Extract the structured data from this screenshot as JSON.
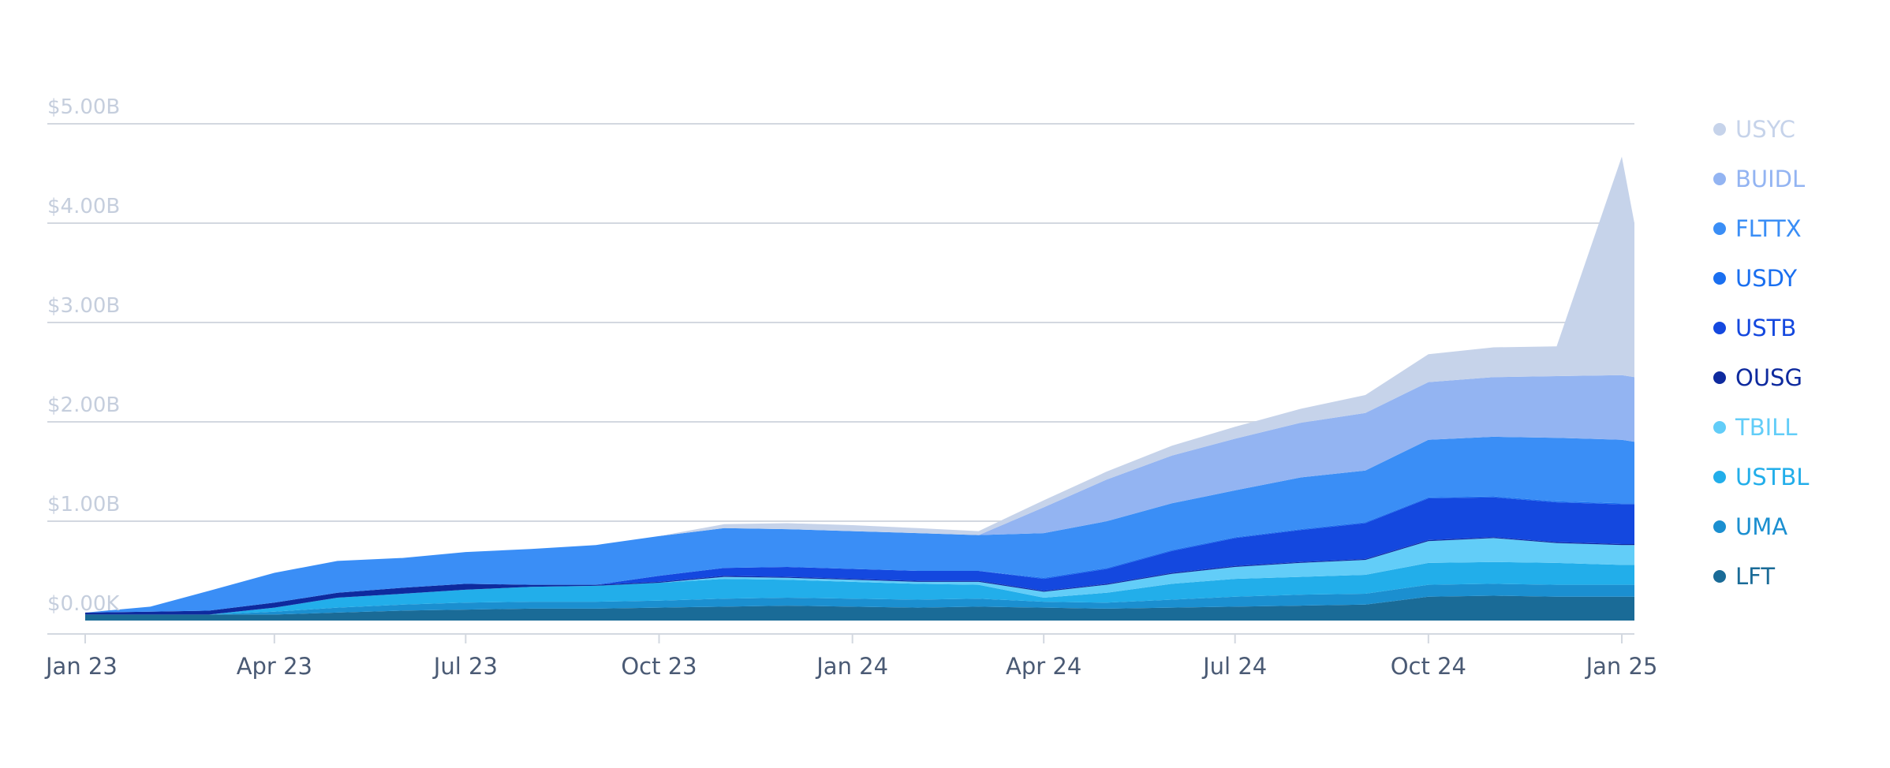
{
  "chart_data": {
    "type": "area",
    "stacked": true,
    "title": "",
    "xlabel": "",
    "ylabel": "",
    "ylim": [
      0,
      5.0
    ],
    "y_ticks": [
      "$0.00K",
      "$1.00B",
      "$2.00B",
      "$3.00B",
      "$4.00B",
      "$5.00B"
    ],
    "y_tick_values": [
      0,
      1,
      2,
      3,
      4,
      5
    ],
    "x_ticks": [
      "Jan 23",
      "Apr 23",
      "Jul 23",
      "Oct 23",
      "Jan 24",
      "Apr 24",
      "Jul 24",
      "Oct 24",
      "Jan 25"
    ],
    "x_tick_values": [
      "2023-01-01",
      "2023-04-01",
      "2023-07-01",
      "2023-10-01",
      "2024-01-01",
      "2024-04-01",
      "2024-07-01",
      "2024-10-01",
      "2025-01-01"
    ],
    "x": [
      "2023-01-01",
      "2023-02-01",
      "2023-03-01",
      "2023-04-01",
      "2023-05-01",
      "2023-06-01",
      "2023-07-01",
      "2023-08-01",
      "2023-09-01",
      "2023-10-01",
      "2023-11-01",
      "2023-12-01",
      "2024-01-01",
      "2024-02-01",
      "2024-03-01",
      "2024-04-01",
      "2024-05-01",
      "2024-06-01",
      "2024-07-01",
      "2024-08-01",
      "2024-09-01",
      "2024-10-01",
      "2024-11-01",
      "2024-12-01",
      "2025-01-01",
      "2025-01-07"
    ],
    "legend_position": "right",
    "grid": true,
    "series": [
      {
        "name": "LFT",
        "color": "#1a6b97",
        "values": [
          0.06,
          0.06,
          0.06,
          0.06,
          0.08,
          0.1,
          0.11,
          0.12,
          0.12,
          0.13,
          0.14,
          0.15,
          0.14,
          0.13,
          0.14,
          0.13,
          0.12,
          0.13,
          0.14,
          0.15,
          0.16,
          0.24,
          0.25,
          0.24,
          0.24,
          0.24
        ]
      },
      {
        "name": "UMA",
        "color": "#1b8fd0",
        "values": [
          0.0,
          0.0,
          0.0,
          0.03,
          0.05,
          0.06,
          0.07,
          0.07,
          0.07,
          0.07,
          0.08,
          0.08,
          0.08,
          0.08,
          0.08,
          0.06,
          0.06,
          0.08,
          0.1,
          0.11,
          0.11,
          0.12,
          0.12,
          0.12,
          0.12,
          0.12
        ]
      },
      {
        "name": "USTBL",
        "color": "#22aeea",
        "values": [
          0.0,
          0.0,
          0.0,
          0.04,
          0.1,
          0.11,
          0.13,
          0.15,
          0.16,
          0.18,
          0.2,
          0.18,
          0.17,
          0.16,
          0.14,
          0.04,
          0.1,
          0.16,
          0.18,
          0.18,
          0.19,
          0.22,
          0.22,
          0.22,
          0.2,
          0.2
        ]
      },
      {
        "name": "TBILL",
        "color": "#62cdf8",
        "values": [
          0.0,
          0.0,
          0.0,
          0.0,
          0.0,
          0.0,
          0.0,
          0.0,
          0.0,
          0.0,
          0.02,
          0.02,
          0.02,
          0.02,
          0.03,
          0.06,
          0.08,
          0.1,
          0.12,
          0.14,
          0.15,
          0.22,
          0.24,
          0.2,
          0.2,
          0.2
        ]
      },
      {
        "name": "OUSG",
        "color": "#0e2a9e",
        "values": [
          0.02,
          0.03,
          0.04,
          0.05,
          0.05,
          0.06,
          0.06,
          0.02,
          0.01,
          0.01,
          0.01,
          0.01,
          0.01,
          0.01,
          0.01,
          0.01,
          0.01,
          0.01,
          0.01,
          0.01,
          0.01,
          0.01,
          0.01,
          0.01,
          0.01,
          0.01
        ]
      },
      {
        "name": "USTB",
        "color": "#1448df",
        "values": [
          0.0,
          0.0,
          0.0,
          0.0,
          0.0,
          0.0,
          0.0,
          0.0,
          0.0,
          0.06,
          0.08,
          0.1,
          0.1,
          0.1,
          0.1,
          0.12,
          0.15,
          0.22,
          0.28,
          0.32,
          0.36,
          0.42,
          0.4,
          0.4,
          0.4,
          0.4
        ]
      },
      {
        "name": "USDY",
        "color": "#1a6ff0",
        "values": [
          0.0,
          0.0,
          0.0,
          0.0,
          0.0,
          0.0,
          0.0,
          0.0,
          0.0,
          0.0,
          0.0,
          0.0,
          0.0,
          0.0,
          0.0,
          0.01,
          0.01,
          0.01,
          0.01,
          0.01,
          0.01,
          0.01,
          0.01,
          0.01,
          0.01,
          0.01
        ]
      },
      {
        "name": "FLTTX",
        "color": "#3a8ef6",
        "values": [
          0.0,
          0.05,
          0.2,
          0.3,
          0.32,
          0.3,
          0.32,
          0.36,
          0.4,
          0.4,
          0.4,
          0.38,
          0.38,
          0.38,
          0.36,
          0.45,
          0.47,
          0.47,
          0.47,
          0.52,
          0.52,
          0.58,
          0.6,
          0.64,
          0.64,
          0.62
        ]
      },
      {
        "name": "BUIDL",
        "color": "#93b4f2",
        "values": [
          0.0,
          0.0,
          0.0,
          0.0,
          0.0,
          0.0,
          0.0,
          0.0,
          0.0,
          0.0,
          0.0,
          0.0,
          0.0,
          0.0,
          0.0,
          0.26,
          0.42,
          0.48,
          0.52,
          0.55,
          0.58,
          0.58,
          0.6,
          0.62,
          0.65,
          0.65
        ]
      },
      {
        "name": "USYC",
        "color": "#c6d3ea",
        "values": [
          0.0,
          0.0,
          0.0,
          0.0,
          0.0,
          0.0,
          0.0,
          0.0,
          0.0,
          0.0,
          0.04,
          0.06,
          0.06,
          0.05,
          0.04,
          0.07,
          0.08,
          0.1,
          0.12,
          0.14,
          0.18,
          0.28,
          0.3,
          0.3,
          2.2,
          1.55
        ]
      }
    ]
  }
}
